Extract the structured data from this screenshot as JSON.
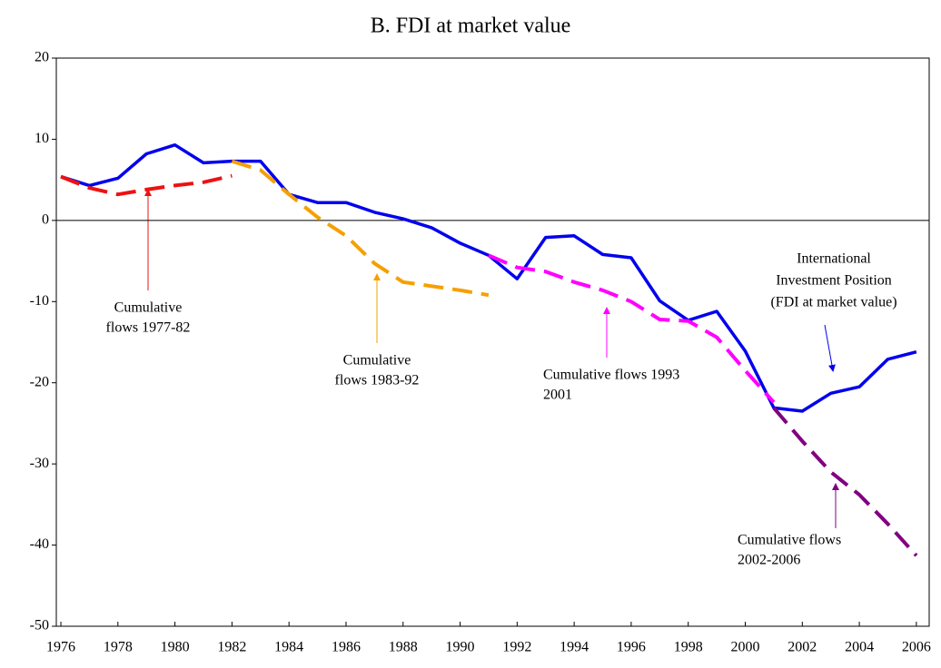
{
  "chart_data": {
    "type": "line",
    "title": "B. FDI at market value",
    "x": [
      1976,
      1977,
      1978,
      1979,
      1980,
      1981,
      1982,
      1983,
      1984,
      1985,
      1986,
      1987,
      1988,
      1989,
      1990,
      1991,
      1992,
      1993,
      1994,
      1995,
      1996,
      1997,
      1998,
      1999,
      2000,
      2001,
      2002,
      2003,
      2004,
      2005,
      2006
    ],
    "xlim": [
      1975.84,
      2006.45
    ],
    "xticks": [
      1976,
      1978,
      1980,
      1982,
      1984,
      1986,
      1988,
      1990,
      1992,
      1994,
      1996,
      1998,
      2000,
      2002,
      2004,
      2006
    ],
    "ylim": [
      -50,
      20
    ],
    "yticks": [
      -50,
      -40,
      -30,
      -20,
      -10,
      0,
      10,
      20
    ],
    "series": [
      {
        "color": "#0000ee",
        "dashed": false,
        "values": [
          5.4,
          4.3,
          5.2,
          8.2,
          9.3,
          7.1,
          7.3,
          7.3,
          3.2,
          2.2,
          2.2,
          1.0,
          0.2,
          -0.9,
          -2.8,
          -4.3,
          -7.2,
          -2.1,
          -1.9,
          -4.2,
          -4.6,
          -9.9,
          -12.3,
          -11.2,
          -16.1,
          -23.1,
          -23.5,
          -21.3,
          -20.5,
          -17.1,
          -16.2
        ]
      },
      {
        "color": "#ee1111",
        "dashed": true,
        "values": [
          5.4,
          4.0,
          3.2,
          3.8,
          4.3,
          4.7,
          5.5,
          null,
          null,
          null,
          null,
          null,
          null,
          null,
          null,
          null,
          null,
          null,
          null,
          null,
          null,
          null,
          null,
          null,
          null,
          null,
          null,
          null,
          null,
          null,
          null
        ]
      },
      {
        "color": "#f5a000",
        "dashed": true,
        "values": [
          null,
          null,
          null,
          null,
          null,
          null,
          7.3,
          6.2,
          3.2,
          0.4,
          -1.9,
          -5.3,
          -7.6,
          -8.1,
          -8.6,
          -9.2,
          null,
          null,
          null,
          null,
          null,
          null,
          null,
          null,
          null,
          null,
          null,
          null,
          null,
          null,
          null
        ]
      },
      {
        "color": "#ff00ff",
        "dashed": true,
        "values": [
          null,
          null,
          null,
          null,
          null,
          null,
          null,
          null,
          null,
          null,
          null,
          null,
          null,
          null,
          null,
          -4.3,
          -5.8,
          -6.3,
          -7.6,
          -8.6,
          -10.0,
          -12.2,
          -12.4,
          -14.4,
          -18.5,
          -22.4,
          null,
          null,
          null,
          null,
          null
        ]
      },
      {
        "color": "#800080",
        "dashed": true,
        "values": [
          null,
          null,
          null,
          null,
          null,
          null,
          null,
          null,
          null,
          null,
          null,
          null,
          null,
          null,
          null,
          null,
          null,
          null,
          null,
          null,
          null,
          null,
          null,
          null,
          null,
          -23.1,
          -27.2,
          -31.0,
          -33.8,
          -37.4,
          -41.3
        ]
      }
    ],
    "annotations": [
      {
        "lines": [
          "Cumulative",
          "flows 1977-82"
        ]
      },
      {
        "lines": [
          "Cumulative",
          "flows 1983-92"
        ]
      },
      {
        "lines": [
          "Cumulative flows 1993",
          "2001"
        ]
      },
      {
        "lines": [
          "International",
          "Investment Position",
          "(FDI at market value)"
        ]
      },
      {
        "lines": [
          "Cumulative flows",
          "2002-2006"
        ]
      }
    ]
  }
}
